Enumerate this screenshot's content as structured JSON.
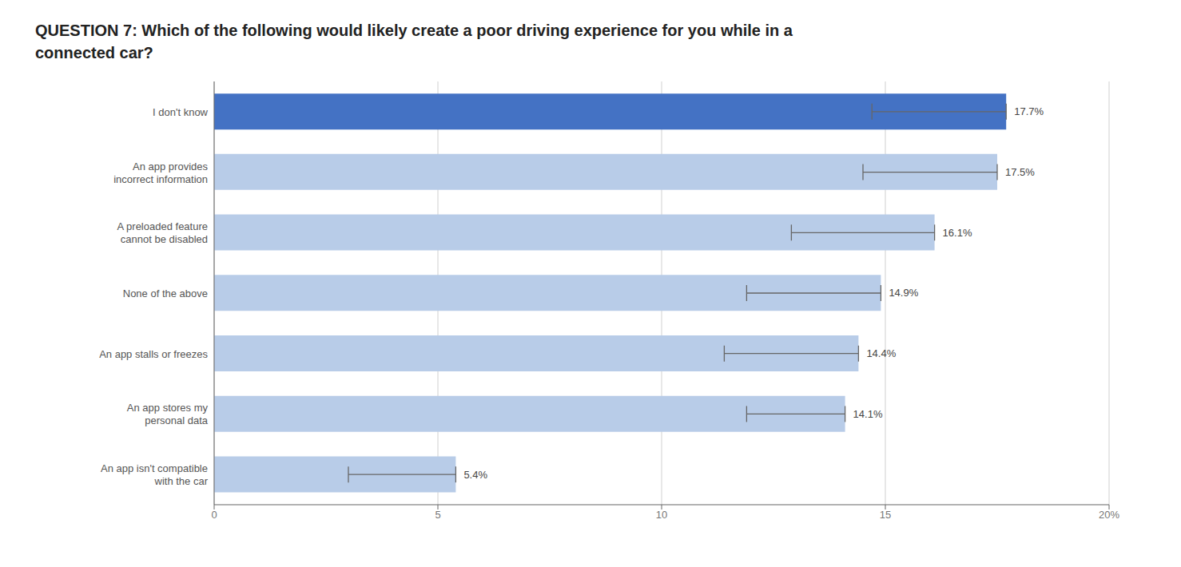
{
  "chart_data": {
    "type": "bar",
    "orientation": "horizontal",
    "title": "QUESTION 7: Which of the following would likely create a poor driving experience for you while in a\nconnected car?",
    "categories": [
      "An app isn't compatible\nwith the car",
      "An app stores my\npersonal data",
      "An app stalls or freezes",
      "None of the above",
      "A preloaded feature\ncannot be disabled",
      "An app provides\nincorrect information",
      "I don't know"
    ],
    "values": [
      5.4,
      14.1,
      14.4,
      14.9,
      16.1,
      17.5,
      17.7
    ],
    "value_labels": [
      "5.4%",
      "14.1%",
      "14.4%",
      "14.9%",
      "16.1%",
      "17.5%",
      "17.7%"
    ],
    "data_labels": true,
    "colors": [
      "#b8cce8",
      "#b8cce8",
      "#b8cce8",
      "#b8cce8",
      "#b8cce8",
      "#b8cce8",
      "#4472c4"
    ],
    "error_centers": [
      4.2,
      13.0,
      12.9,
      13.4,
      14.5,
      16.0,
      16.2
    ],
    "error_low": [
      1.2,
      1.1,
      1.5,
      1.5,
      1.6,
      1.5,
      1.5
    ],
    "error_high": [
      1.2,
      1.1,
      1.5,
      1.5,
      1.6,
      1.5,
      1.5
    ],
    "xlim": [
      0,
      20
    ],
    "xticks": [
      0,
      5,
      10,
      15,
      {
        "value": 20,
        "label": "20%"
      }
    ],
    "grid": true
  }
}
